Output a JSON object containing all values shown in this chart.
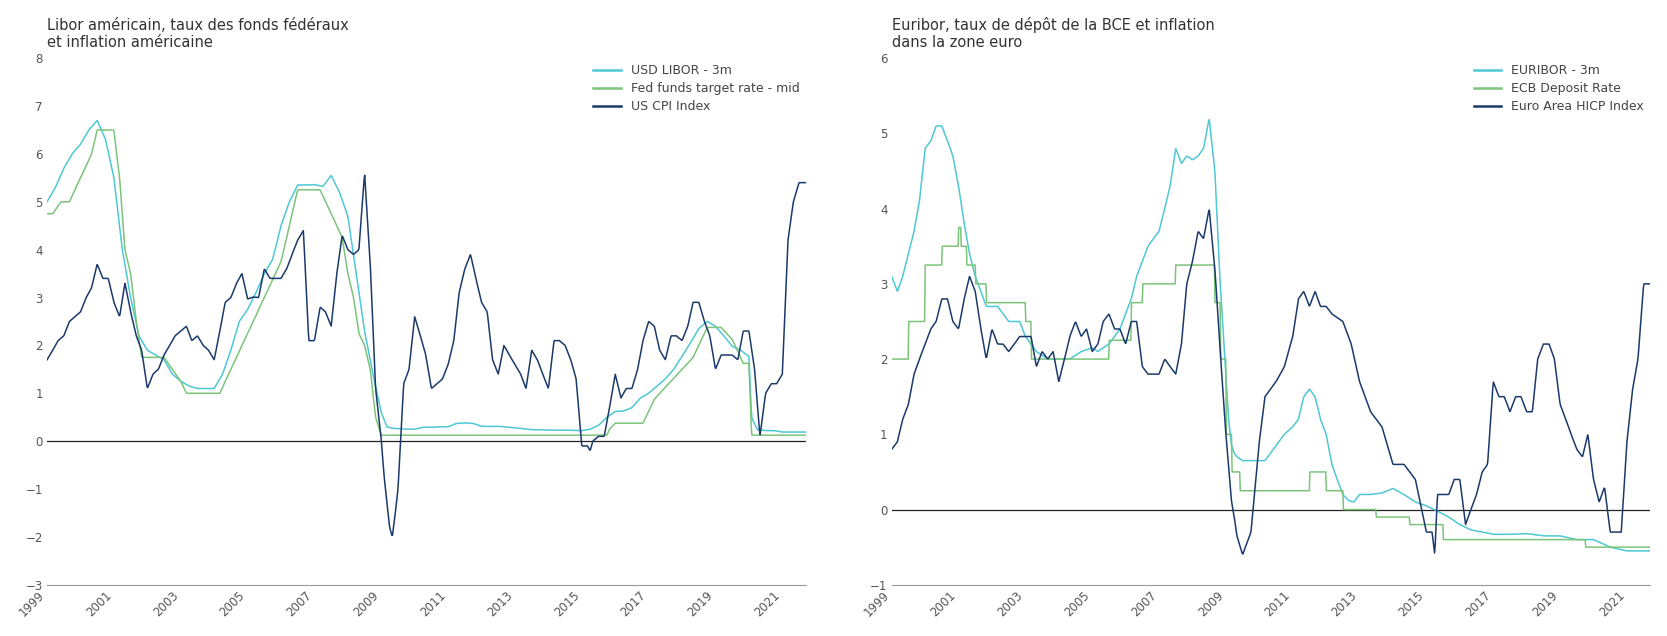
{
  "left_title": "Libor américain, taux des fonds fédéraux\net inflation américaine",
  "right_title": "Euribor, taux de dépôt de la BCE et inflation\ndans la zone euro",
  "left_legend": [
    "USD LIBOR - 3m",
    "Fed funds target rate - mid",
    "US CPI Index"
  ],
  "right_legend": [
    "EURIBOR - 3m",
    "ECB Deposit Rate",
    "Euro Area HICP Index"
  ],
  "left_colors": [
    "#4dc8d4",
    "#7cc47a",
    "#1b3a6b"
  ],
  "right_colors": [
    "#4dc8d4",
    "#7cc47a",
    "#1b3a6b"
  ],
  "left_ylim": [
    -3,
    8
  ],
  "right_ylim": [
    -1,
    6
  ],
  "left_yticks": [
    -3,
    -2,
    -1,
    0,
    1,
    2,
    3,
    4,
    5,
    6,
    7,
    8
  ],
  "right_yticks": [
    -1,
    0,
    1,
    2,
    3,
    4,
    5,
    6
  ],
  "background_color": "#ffffff",
  "xlim_start": 1999.0,
  "xlim_end": 2021.7,
  "xtick_years": [
    1999,
    2001,
    2003,
    2005,
    2007,
    2009,
    2011,
    2013,
    2015,
    2017,
    2019,
    2021
  ]
}
